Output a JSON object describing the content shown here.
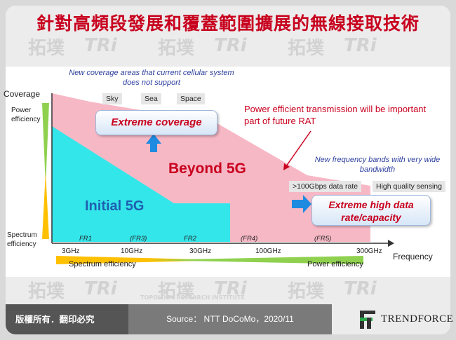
{
  "title": "針對高頻段發展和覆蓋範圍擴展的無線接取技術",
  "watermark": {
    "brand": "拓墣",
    "logo": "TRi",
    "tagline": "TOPOLOGY RESEARCH INSTITUTE"
  },
  "diagram": {
    "y_axis_label": "Coverage",
    "x_axis_label": "Frequency",
    "left_top_bar_label": "Power efficiency",
    "left_bottom_bar_label": "Spectrum efficiency",
    "bottom_left_bar_label": "Spectrum efficiency",
    "bottom_right_bar_label": "Power efficiency",
    "region_initial": "Initial 5G",
    "region_beyond": "Beyond 5G",
    "note_coverage": "New coverage areas that current cellular system does not support",
    "coverage_tags": [
      "Sky",
      "Sea",
      "Space"
    ],
    "callout_coverage": "Extreme coverage",
    "note_power": "Power efficient transmission will be important part of future RAT",
    "note_bands": "New frequency bands with very wide bandwidth",
    "band_tags": [
      ">100Gbps data rate",
      "High quality sensing"
    ],
    "callout_capacity": "Extreme high data rate/capacity",
    "freq_ranges": [
      "FR1",
      "(FR3)",
      "FR2",
      "(FR4)",
      "(FR5)"
    ],
    "freq_ticks": [
      "3GHz",
      "10GHz",
      "30GHz",
      "100GHz",
      "300GHz"
    ],
    "colors": {
      "beyond": "#f7b8c6",
      "initial": "#33e6ea",
      "green": "#8fd14f",
      "orange": "#ffc000",
      "accent_red": "#c8001e",
      "note_blue": "#2e3f9e",
      "arrow_blue": "#1e8be0"
    }
  },
  "footer": {
    "rights": "版權所有．翻印必究",
    "source": "Source： NTT DoCoMo，2020/11",
    "brand": "TRENDFORCE"
  }
}
